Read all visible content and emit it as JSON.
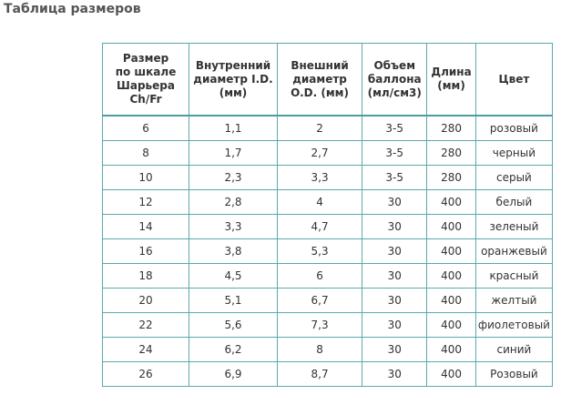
{
  "title": "Таблица размеров",
  "table": {
    "header": [
      "Размер\nпо шкале\nШарьера\nCh/Fr",
      "Внутренний\nдиаметр I.D.\n(мм)",
      "Внешний\nдиаметр\nO.D. (мм)",
      "Объем\nбаллона\n(мл/см3)",
      "Длина\n(мм)",
      "Цвет"
    ],
    "rows": [
      [
        "6",
        "1,1",
        "2",
        "3-5",
        "280",
        "розовый"
      ],
      [
        "8",
        "1,7",
        "2,7",
        "3-5",
        "280",
        "черный"
      ],
      [
        "10",
        "2,3",
        "3,3",
        "3-5",
        "280",
        "серый"
      ],
      [
        "12",
        "2,8",
        "4",
        "30",
        "400",
        "белый"
      ],
      [
        "14",
        "3,3",
        "4,7",
        "30",
        "400",
        "зеленый"
      ],
      [
        "16",
        "3,8",
        "5,3",
        "30",
        "400",
        "оранжевый"
      ],
      [
        "18",
        "4,5",
        "6",
        "30",
        "400",
        "красный"
      ],
      [
        "20",
        "5,1",
        "6,7",
        "30",
        "400",
        "желтый"
      ],
      [
        "22",
        "5,6",
        "7,3",
        "30",
        "400",
        "фиолетовый"
      ],
      [
        "24",
        "6,2",
        "8",
        "30",
        "400",
        "синий"
      ],
      [
        "26",
        "6,9",
        "8,7",
        "30",
        "400",
        "Розовый"
      ]
    ]
  }
}
